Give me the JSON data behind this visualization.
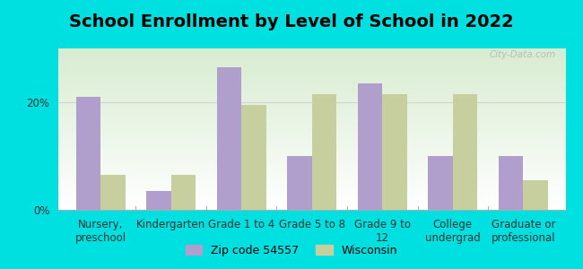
{
  "title": "School Enrollment by Level of School in 2022",
  "categories": [
    "Nursery,\npreschool",
    "Kindergarten",
    "Grade 1 to 4",
    "Grade 5 to 8",
    "Grade 9 to\n12",
    "College\nundergrad",
    "Graduate or\nprofessional"
  ],
  "zip_values": [
    21.0,
    3.5,
    26.5,
    10.0,
    23.5,
    10.0,
    10.0
  ],
  "wi_values": [
    6.5,
    6.5,
    19.5,
    21.5,
    21.5,
    21.5,
    5.5
  ],
  "zip_color": "#b09fcc",
  "wi_color": "#c8cf9f",
  "background_color": "#00e0e0",
  "ylabel_ticks": [
    "0%",
    "20%"
  ],
  "yticks": [
    0,
    20
  ],
  "ylim": [
    0,
    30
  ],
  "legend_zip_label": "Zip code 54557",
  "legend_wi_label": "Wisconsin",
  "title_fontsize": 14,
  "tick_fontsize": 8.5,
  "legend_fontsize": 9,
  "bar_width": 0.35,
  "watermark": "City-Data.com"
}
